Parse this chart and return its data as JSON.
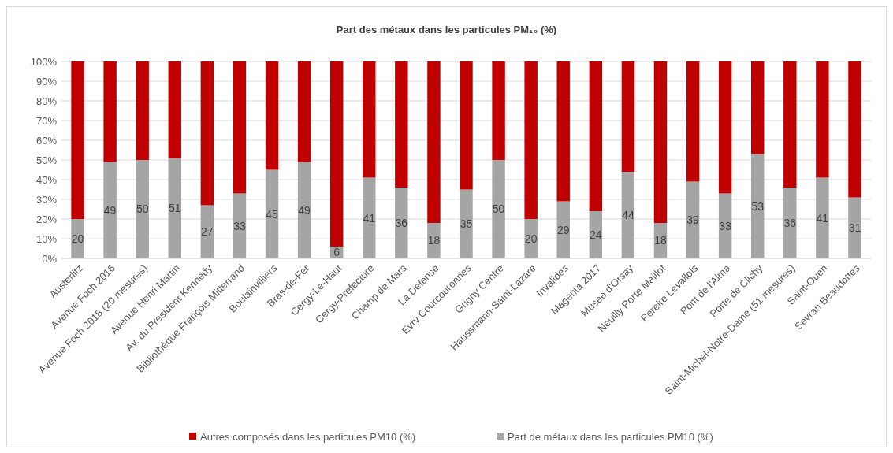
{
  "chart_data": {
    "type": "bar",
    "stacked": true,
    "title": "Part des métaux dans les particules PM₁₀ (%)",
    "categories": [
      "Austerlitz",
      "Avenue Foch 2016",
      "Avenue Foch 2018 (20 mesures)",
      "Avenue Henri Martin",
      "Av. du President Kennedy",
      "Bibliothèque François Mitterrand",
      "Boulainvilliers",
      "Bras-de-Fer",
      "Cergy-Le-Haut",
      "Cergy-Prefecture",
      "Champ de Mars",
      "La Defense",
      "Evry Courcouronnes",
      "Grigny Centre",
      "Haussmann-Saint-Lazare",
      "Invalides",
      "Magenta 2017",
      "Musee d'Orsay",
      "Neuilly Porte Maillot",
      "Pereire Levallois",
      "Pont de l'Alma",
      "Porte de Clichy",
      "Saint-Michel-Notre-Dame (51 mesures)",
      "Saint-Ouen",
      "Sevran Beaudottes"
    ],
    "series": [
      {
        "name": "Part de métaux dans les particules PM10 (%)",
        "color": "#a5a5a5",
        "values": [
          20,
          49,
          50,
          51,
          27,
          33,
          45,
          49,
          6,
          41,
          36,
          18,
          35,
          50,
          20,
          29,
          24,
          44,
          18,
          39,
          33,
          53,
          36,
          41,
          31
        ],
        "value_labels": [
          "20",
          "49",
          "50",
          "51",
          "27",
          "33",
          "45",
          "49",
          "6",
          "41",
          "36",
          "18",
          "35",
          "50",
          "20",
          "29",
          "24",
          "44",
          "18",
          "39",
          "33",
          "53",
          "36",
          "41",
          "31"
        ]
      },
      {
        "name": "Autres composés dans les particules PM10 (%)",
        "color": "#c00000",
        "values": [
          80,
          51,
          50,
          49,
          73,
          67,
          55,
          51,
          94,
          59,
          64,
          82,
          65,
          50,
          80,
          71,
          76,
          56,
          82,
          61,
          67,
          47,
          64,
          59,
          69
        ]
      }
    ],
    "ylim": [
      0,
      100
    ],
    "yticks": [
      {
        "value": 0,
        "label": "0%"
      },
      {
        "value": 10,
        "label": "10%"
      },
      {
        "value": 20,
        "label": "20%"
      },
      {
        "value": 30,
        "label": "30%"
      },
      {
        "value": 40,
        "label": "40%"
      },
      {
        "value": 50,
        "label": "50%"
      },
      {
        "value": 60,
        "label": "60%"
      },
      {
        "value": 70,
        "label": "70%"
      },
      {
        "value": 80,
        "label": "80%"
      },
      {
        "value": 90,
        "label": "90%"
      },
      {
        "value": 100,
        "label": "100%"
      }
    ],
    "grid": "y",
    "legend": "bottom"
  }
}
